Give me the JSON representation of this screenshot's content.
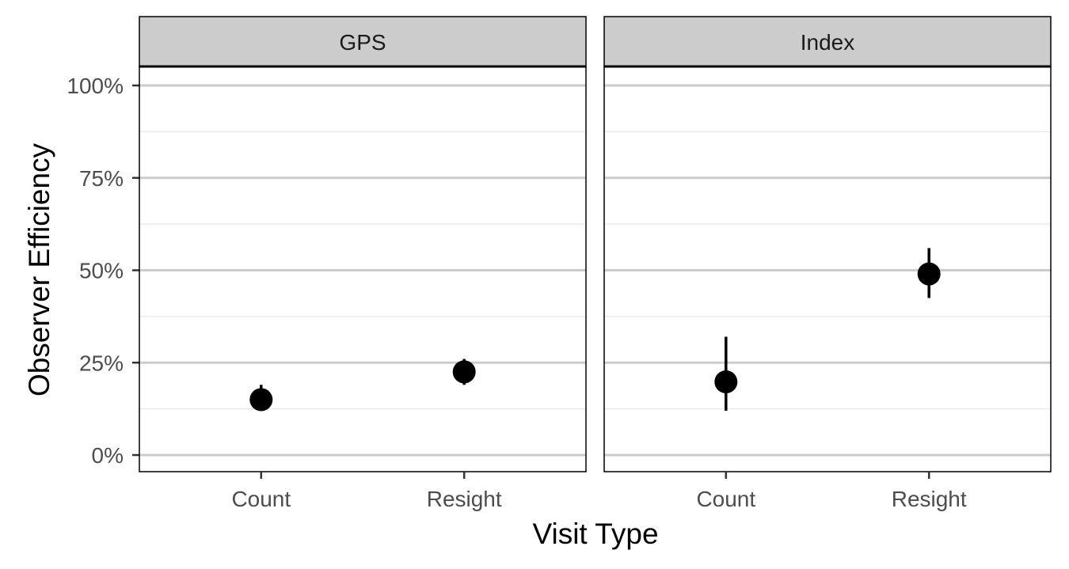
{
  "chart_data": {
    "type": "scatter",
    "subtype": "point-range faceted",
    "title": "",
    "xlabel": "Visit Type",
    "ylabel": "Observer Efficiency",
    "categories": [
      "Count",
      "Resight"
    ],
    "ylim": [
      -0.04,
      1.05
    ],
    "yticks": [
      0,
      0.25,
      0.5,
      0.75,
      1.0
    ],
    "ytick_labels": [
      "0%",
      "25%",
      "50%",
      "75%",
      "100%"
    ],
    "grid": true,
    "legend": "none",
    "colors": {
      "point": "#000000",
      "major_grid": "#cccccc",
      "minor_grid": "#ebebeb",
      "strip_fill": "#cccccc",
      "panel_border": "#000000"
    },
    "facets": [
      {
        "label": "GPS",
        "points": [
          {
            "category": "Count",
            "y": 0.15,
            "ymin": 0.13,
            "ymax": 0.19
          },
          {
            "category": "Resight",
            "y": 0.225,
            "ymin": 0.19,
            "ymax": 0.26
          }
        ]
      },
      {
        "label": "Index",
        "points": [
          {
            "category": "Count",
            "y": 0.198,
            "ymin": 0.12,
            "ymax": 0.32
          },
          {
            "category": "Resight",
            "y": 0.49,
            "ymin": 0.425,
            "ymax": 0.56
          }
        ]
      }
    ]
  }
}
